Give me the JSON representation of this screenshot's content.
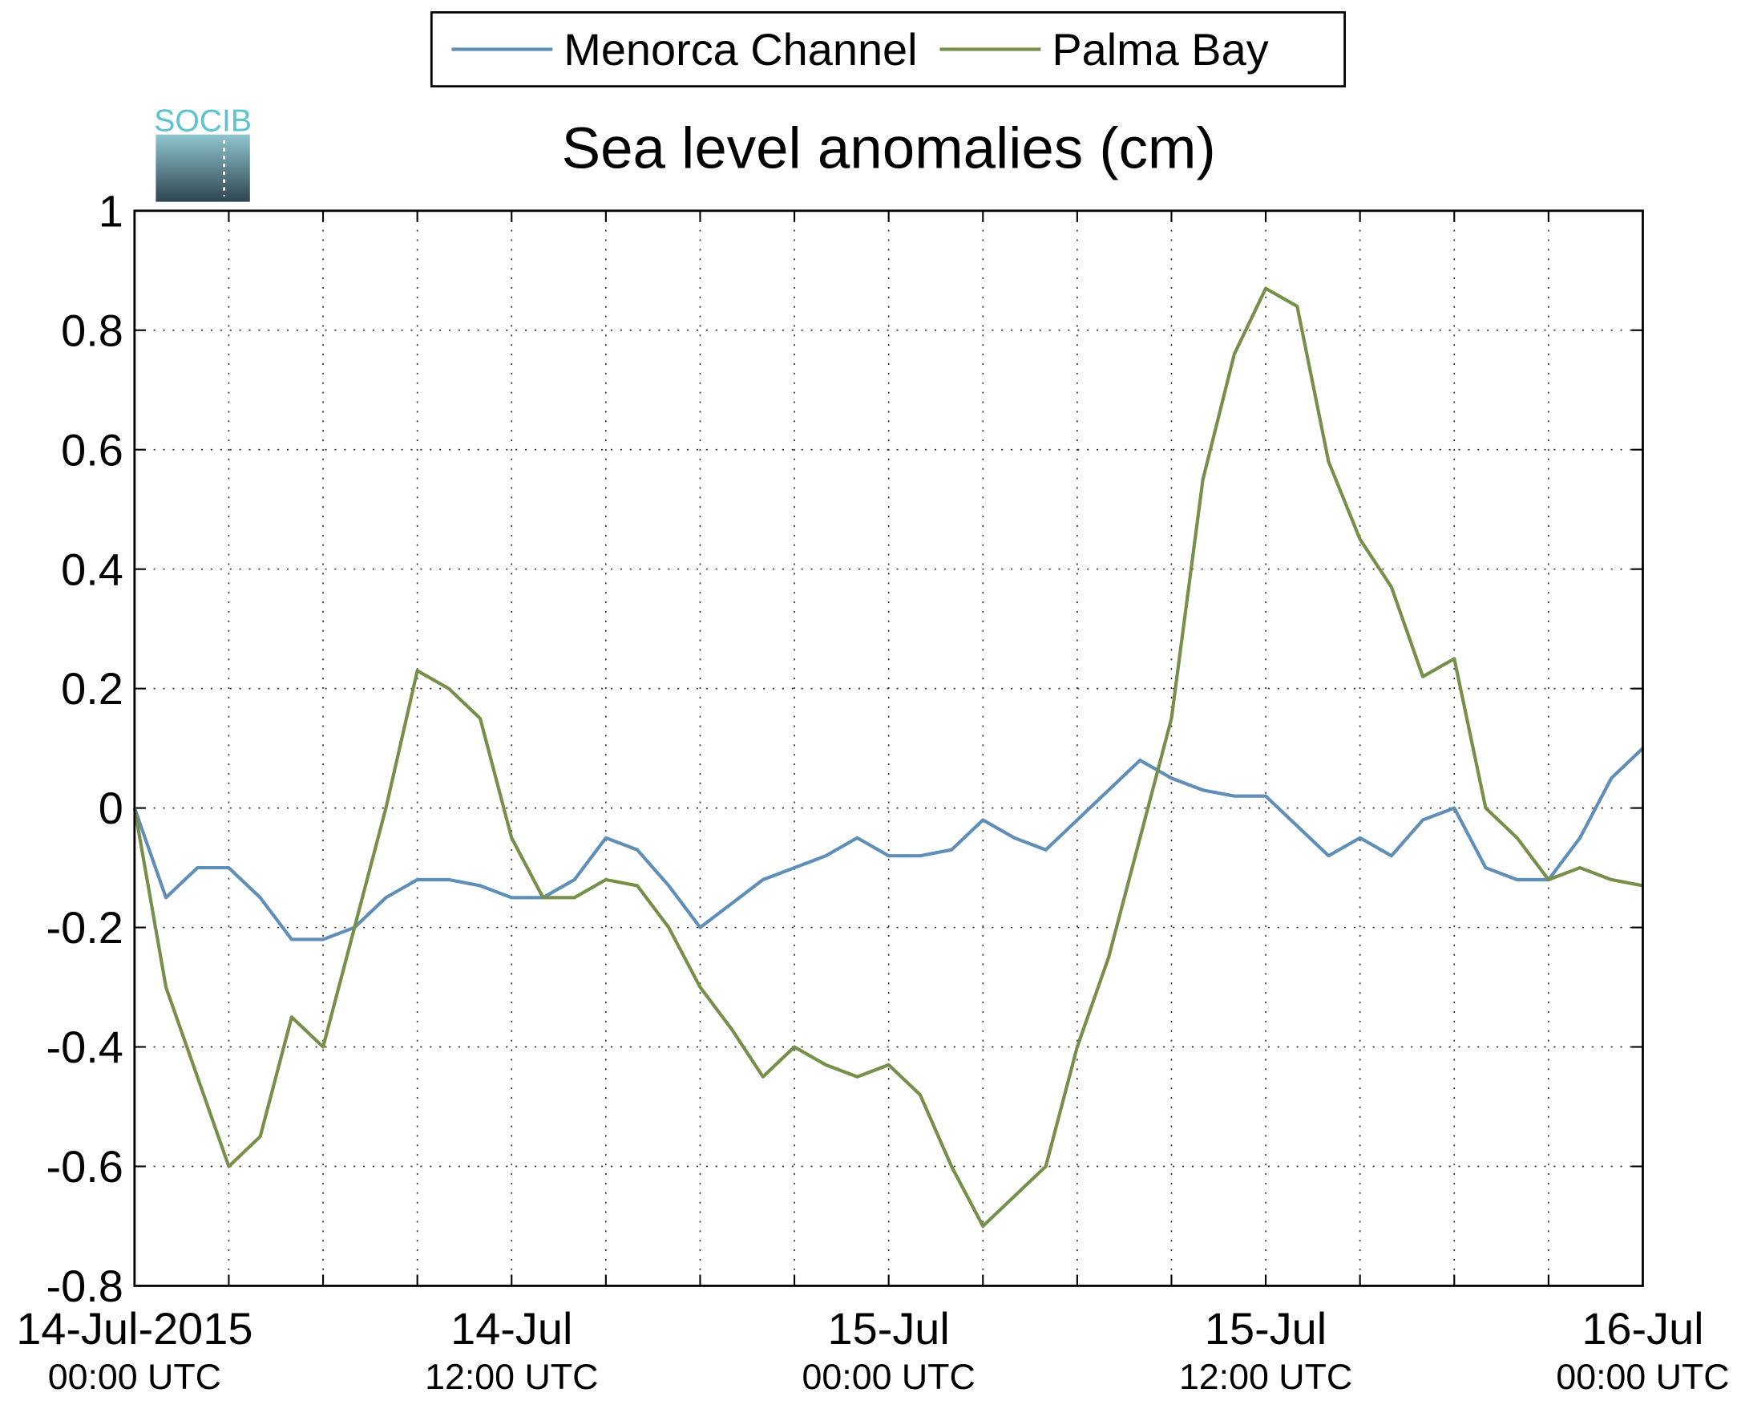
{
  "logo": "SOCIB",
  "chart_data": {
    "type": "line",
    "title": "Sea level anomalies (cm)",
    "x": [
      "2015-07-14T00:00",
      "2015-07-14T01:00",
      "2015-07-14T02:00",
      "2015-07-14T03:00",
      "2015-07-14T04:00",
      "2015-07-14T05:00",
      "2015-07-14T06:00",
      "2015-07-14T07:00",
      "2015-07-14T08:00",
      "2015-07-14T09:00",
      "2015-07-14T10:00",
      "2015-07-14T11:00",
      "2015-07-14T12:00",
      "2015-07-14T13:00",
      "2015-07-14T14:00",
      "2015-07-14T15:00",
      "2015-07-14T16:00",
      "2015-07-14T17:00",
      "2015-07-14T18:00",
      "2015-07-14T19:00",
      "2015-07-14T20:00",
      "2015-07-14T21:00",
      "2015-07-14T22:00",
      "2015-07-14T23:00",
      "2015-07-15T00:00",
      "2015-07-15T01:00",
      "2015-07-15T02:00",
      "2015-07-15T03:00",
      "2015-07-15T04:00",
      "2015-07-15T05:00",
      "2015-07-15T06:00",
      "2015-07-15T07:00",
      "2015-07-15T08:00",
      "2015-07-15T09:00",
      "2015-07-15T10:00",
      "2015-07-15T11:00",
      "2015-07-15T12:00",
      "2015-07-15T13:00",
      "2015-07-15T14:00",
      "2015-07-15T15:00",
      "2015-07-15T16:00",
      "2015-07-15T17:00",
      "2015-07-15T18:00",
      "2015-07-15T19:00",
      "2015-07-15T20:00",
      "2015-07-15T21:00",
      "2015-07-15T22:00",
      "2015-07-15T23:00",
      "2015-07-16T00:00"
    ],
    "series": [
      {
        "name": "Menorca Channel",
        "color": "#5f8fb8",
        "values": [
          0.0,
          -0.15,
          -0.1,
          -0.1,
          -0.15,
          -0.22,
          -0.22,
          -0.2,
          -0.15,
          -0.12,
          -0.12,
          -0.13,
          -0.15,
          -0.15,
          -0.12,
          -0.05,
          -0.07,
          -0.13,
          -0.2,
          -0.16,
          -0.12,
          -0.1,
          -0.08,
          -0.05,
          -0.08,
          -0.08,
          -0.07,
          -0.02,
          -0.05,
          -0.07,
          -0.02,
          0.03,
          0.08,
          0.05,
          0.03,
          0.02,
          0.02,
          -0.03,
          -0.08,
          -0.05,
          -0.08,
          -0.02,
          0.0,
          -0.1,
          -0.12,
          -0.12,
          -0.05,
          0.05,
          0.1
        ]
      },
      {
        "name": "Palma Bay",
        "color": "#76904a",
        "values": [
          0.0,
          -0.3,
          -0.45,
          -0.6,
          -0.55,
          -0.35,
          -0.4,
          -0.2,
          0.0,
          0.23,
          0.2,
          0.15,
          -0.05,
          -0.15,
          -0.15,
          -0.12,
          -0.13,
          -0.2,
          -0.3,
          -0.37,
          -0.45,
          -0.4,
          -0.43,
          -0.45,
          -0.43,
          -0.48,
          -0.6,
          -0.7,
          -0.65,
          -0.6,
          -0.4,
          -0.25,
          -0.05,
          0.15,
          0.55,
          0.76,
          0.87,
          0.84,
          0.58,
          0.45,
          0.37,
          0.22,
          0.25,
          0.0,
          -0.05,
          -0.12,
          -0.1,
          -0.12,
          -0.13
        ]
      }
    ],
    "xlim": [
      "2015-07-14T00:00",
      "2015-07-16T00:00"
    ],
    "xticks": [
      {
        "value": "2015-07-14T00:00",
        "label": [
          "14-Jul-2015",
          "00:00 UTC"
        ]
      },
      {
        "value": "2015-07-14T03:00",
        "label": null
      },
      {
        "value": "2015-07-14T06:00",
        "label": null
      },
      {
        "value": "2015-07-14T09:00",
        "label": null
      },
      {
        "value": "2015-07-14T12:00",
        "label": [
          "14-Jul",
          "12:00 UTC"
        ]
      },
      {
        "value": "2015-07-14T15:00",
        "label": null
      },
      {
        "value": "2015-07-14T18:00",
        "label": null
      },
      {
        "value": "2015-07-14T21:00",
        "label": null
      },
      {
        "value": "2015-07-15T00:00",
        "label": [
          "15-Jul",
          "00:00 UTC"
        ]
      },
      {
        "value": "2015-07-15T03:00",
        "label": null
      },
      {
        "value": "2015-07-15T06:00",
        "label": null
      },
      {
        "value": "2015-07-15T09:00",
        "label": null
      },
      {
        "value": "2015-07-15T12:00",
        "label": [
          "15-Jul",
          "12:00 UTC"
        ]
      },
      {
        "value": "2015-07-15T15:00",
        "label": null
      },
      {
        "value": "2015-07-15T18:00",
        "label": null
      },
      {
        "value": "2015-07-15T21:00",
        "label": null
      },
      {
        "value": "2015-07-16T00:00",
        "label": [
          "16-Jul",
          "00:00 UTC"
        ]
      }
    ],
    "ylim": [
      -0.8,
      1
    ],
    "yticks": [
      -0.8,
      -0.6,
      -0.4,
      -0.2,
      0,
      0.2,
      0.4,
      0.6,
      0.8,
      1
    ],
    "grid": true,
    "legend": "top"
  }
}
